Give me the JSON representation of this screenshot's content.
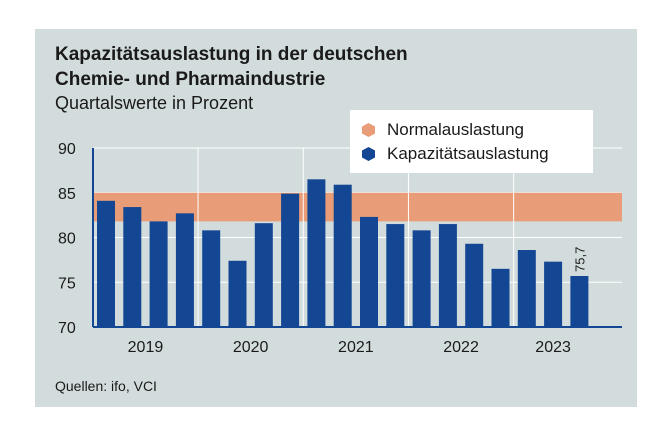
{
  "title_line1": "Kapazitätsauslastung in der deutschen",
  "title_line2": "Chemie- und Pharmaindustrie",
  "subtitle": "Quartalswerte in Prozent",
  "source": "Quellen: ifo, VCI",
  "legend": {
    "normal": "Normalauslastung",
    "capacity": "Kapazitätsauslastung"
  },
  "colors": {
    "bar": "#134693",
    "band": "#e89c77",
    "axis": "#134693",
    "background": "#d3dcdc"
  },
  "chart_data": {
    "type": "bar",
    "title": "Kapazitätsauslastung in der deutschen Chemie- und Pharmaindustrie",
    "subtitle": "Quartalswerte in Prozent",
    "ylim": [
      70,
      90
    ],
    "yticks": [
      70,
      75,
      80,
      85,
      90
    ],
    "normal_band": [
      81.8,
      85
    ],
    "years": [
      "2019",
      "2020",
      "2021",
      "2022",
      "2023"
    ],
    "categories": [
      "2019 Q1",
      "2019 Q2",
      "2019 Q3",
      "2019 Q4",
      "2020 Q1",
      "2020 Q2",
      "2020 Q3",
      "2020 Q4",
      "2021 Q1",
      "2021 Q2",
      "2021 Q3",
      "2021 Q4",
      "2022 Q1",
      "2022 Q2",
      "2022 Q3",
      "2022 Q4",
      "2023 Q1",
      "2023 Q2",
      "2023 Q3"
    ],
    "values": [
      84.1,
      83.4,
      81.8,
      82.7,
      80.8,
      77.4,
      81.6,
      84.9,
      86.5,
      85.9,
      82.3,
      81.5,
      80.8,
      81.5,
      79.3,
      76.5,
      78.6,
      77.3,
      75.7
    ],
    "last_label": "75,7"
  }
}
